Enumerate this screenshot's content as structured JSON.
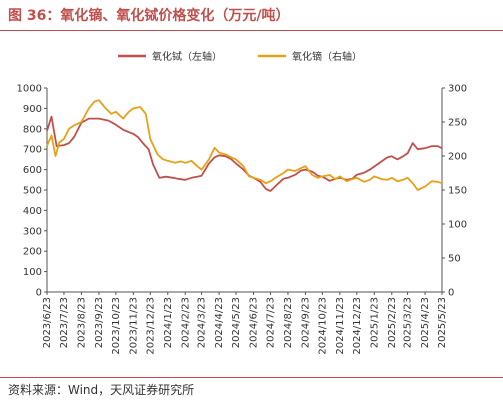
{
  "header": {
    "title": "图 36：氧化镝、氧化铽价格变化（万元/吨）"
  },
  "footer": {
    "source": "资料来源：Wind，天风证券研究所"
  },
  "chart_data": {
    "type": "line",
    "x": [
      "2023/6/23",
      "2023/7/23",
      "2023/8/23",
      "2023/9/23",
      "2023/10/23",
      "2023/11/23",
      "2023/12/23",
      "2024/1/23",
      "2024/2/23",
      "2024/3/23",
      "2024/4/23",
      "2024/5/23",
      "2024/6/23",
      "2024/7/23",
      "2024/8/23",
      "2024/9/23",
      "2024/10/23",
      "2024/11/23",
      "2024/12/23",
      "2025/1/23",
      "2025/2/23",
      "2025/3/23",
      "2025/4/23",
      "2025/5/23"
    ],
    "left_axis": {
      "ylim": [
        0,
        1000
      ],
      "ticks": [
        0,
        100,
        200,
        300,
        400,
        500,
        600,
        700,
        800,
        900,
        1000
      ]
    },
    "right_axis": {
      "ylim": [
        0,
        300
      ],
      "ticks": [
        0,
        50,
        100,
        150,
        200,
        250,
        300
      ]
    },
    "legend_position": "top-center",
    "series": [
      {
        "name": "氧化铽（左轴）",
        "axis": "left",
        "color": "#c0504d",
        "points": [
          [
            "2023/6/23",
            790
          ],
          [
            "2023/7/1",
            860
          ],
          [
            "2023/7/10",
            715
          ],
          [
            "2023/7/23",
            720
          ],
          [
            "2023/8/1",
            730
          ],
          [
            "2023/8/10",
            760
          ],
          [
            "2023/8/23",
            830
          ],
          [
            "2023/9/5",
            850
          ],
          [
            "2023/9/23",
            850
          ],
          [
            "2023/10/10",
            840
          ],
          [
            "2023/10/23",
            820
          ],
          [
            "2023/11/5",
            795
          ],
          [
            "2023/11/23",
            775
          ],
          [
            "2023/12/1",
            760
          ],
          [
            "2023/12/10",
            730
          ],
          [
            "2023/12/20",
            700
          ],
          [
            "2023/12/28",
            625
          ],
          [
            "2024/1/8",
            560
          ],
          [
            "2024/1/20",
            565
          ],
          [
            "2024/2/1",
            560
          ],
          [
            "2024/2/10",
            555
          ],
          [
            "2024/2/23",
            550
          ],
          [
            "2024/3/5",
            560
          ],
          [
            "2024/3/15",
            565
          ],
          [
            "2024/3/23",
            570
          ],
          [
            "2024/4/5",
            630
          ],
          [
            "2024/4/15",
            660
          ],
          [
            "2024/4/23",
            670
          ],
          [
            "2024/5/5",
            665
          ],
          [
            "2024/5/15",
            650
          ],
          [
            "2024/5/23",
            630
          ],
          [
            "2024/6/5",
            600
          ],
          [
            "2024/6/15",
            570
          ],
          [
            "2024/6/23",
            560
          ],
          [
            "2024/7/5",
            540
          ],
          [
            "2024/7/15",
            505
          ],
          [
            "2024/7/23",
            495
          ],
          [
            "2024/8/5",
            530
          ],
          [
            "2024/8/15",
            555
          ],
          [
            "2024/8/23",
            560
          ],
          [
            "2024/9/5",
            575
          ],
          [
            "2024/9/15",
            595
          ],
          [
            "2024/9/23",
            600
          ],
          [
            "2024/10/5",
            590
          ],
          [
            "2024/10/15",
            570
          ],
          [
            "2024/10/23",
            565
          ],
          [
            "2024/11/5",
            545
          ],
          [
            "2024/11/15",
            555
          ],
          [
            "2024/11/23",
            560
          ],
          [
            "2024/12/5",
            550
          ],
          [
            "2024/12/15",
            555
          ],
          [
            "2024/12/23",
            575
          ],
          [
            "2025/1/5",
            585
          ],
          [
            "2025/1/15",
            600
          ],
          [
            "2025/1/23",
            615
          ],
          [
            "2025/2/5",
            640
          ],
          [
            "2025/2/15",
            660
          ],
          [
            "2025/2/23",
            665
          ],
          [
            "2025/3/5",
            650
          ],
          [
            "2025/3/15",
            665
          ],
          [
            "2025/3/23",
            680
          ],
          [
            "2025/4/1",
            730
          ],
          [
            "2025/4/10",
            700
          ],
          [
            "2025/4/23",
            705
          ],
          [
            "2025/5/5",
            715
          ],
          [
            "2025/5/15",
            715
          ],
          [
            "2025/5/23",
            705
          ]
        ]
      },
      {
        "name": "氧化镝（右轴）",
        "axis": "right",
        "color": "#e6a118",
        "points": [
          [
            "2023/6/23",
            215
          ],
          [
            "2023/7/1",
            230
          ],
          [
            "2023/7/8",
            200
          ],
          [
            "2023/7/15",
            220
          ],
          [
            "2023/7/23",
            225
          ],
          [
            "2023/8/1",
            240
          ],
          [
            "2023/8/10",
            245
          ],
          [
            "2023/8/23",
            250
          ],
          [
            "2023/9/5",
            270
          ],
          [
            "2023/9/15",
            280
          ],
          [
            "2023/9/23",
            282
          ],
          [
            "2023/10/5",
            270
          ],
          [
            "2023/10/15",
            262
          ],
          [
            "2023/10/23",
            265
          ],
          [
            "2023/11/5",
            255
          ],
          [
            "2023/11/15",
            265
          ],
          [
            "2023/11/23",
            270
          ],
          [
            "2023/12/5",
            272
          ],
          [
            "2023/12/15",
            262
          ],
          [
            "2023/12/23",
            225
          ],
          [
            "2024/1/5",
            202
          ],
          [
            "2024/1/15",
            195
          ],
          [
            "2024/1/23",
            193
          ],
          [
            "2024/2/5",
            190
          ],
          [
            "2024/2/15",
            192
          ],
          [
            "2024/2/23",
            190
          ],
          [
            "2024/3/5",
            193
          ],
          [
            "2024/3/15",
            185
          ],
          [
            "2024/3/23",
            180
          ],
          [
            "2024/4/5",
            195
          ],
          [
            "2024/4/15",
            212
          ],
          [
            "2024/4/23",
            205
          ],
          [
            "2024/5/5",
            202
          ],
          [
            "2024/5/15",
            198
          ],
          [
            "2024/5/23",
            195
          ],
          [
            "2024/6/5",
            185
          ],
          [
            "2024/6/15",
            170
          ],
          [
            "2024/6/23",
            168
          ],
          [
            "2024/7/5",
            165
          ],
          [
            "2024/7/15",
            160
          ],
          [
            "2024/7/23",
            163
          ],
          [
            "2024/8/5",
            170
          ],
          [
            "2024/8/15",
            175
          ],
          [
            "2024/8/23",
            180
          ],
          [
            "2024/9/5",
            178
          ],
          [
            "2024/9/15",
            182
          ],
          [
            "2024/9/23",
            185
          ],
          [
            "2024/10/5",
            172
          ],
          [
            "2024/10/15",
            168
          ],
          [
            "2024/10/23",
            170
          ],
          [
            "2024/11/5",
            172
          ],
          [
            "2024/11/15",
            166
          ],
          [
            "2024/11/23",
            170
          ],
          [
            "2024/12/5",
            163
          ],
          [
            "2024/12/15",
            166
          ],
          [
            "2024/12/23",
            168
          ],
          [
            "2025/1/5",
            162
          ],
          [
            "2025/1/15",
            165
          ],
          [
            "2025/1/23",
            170
          ],
          [
            "2025/2/5",
            166
          ],
          [
            "2025/2/15",
            165
          ],
          [
            "2025/2/23",
            168
          ],
          [
            "2025/3/5",
            163
          ],
          [
            "2025/3/15",
            165
          ],
          [
            "2025/3/23",
            168
          ],
          [
            "2025/4/1",
            160
          ],
          [
            "2025/4/10",
            150
          ],
          [
            "2025/4/23",
            155
          ],
          [
            "2025/5/5",
            163
          ],
          [
            "2025/5/15",
            162
          ],
          [
            "2025/5/23",
            160
          ]
        ]
      }
    ]
  }
}
